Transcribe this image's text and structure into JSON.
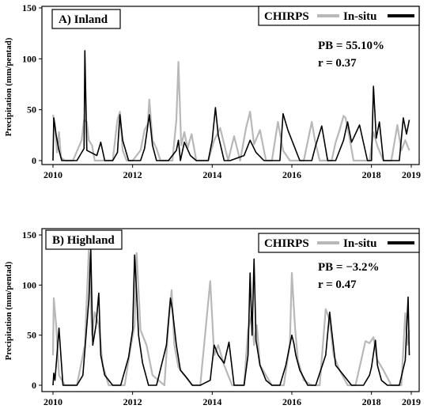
{
  "figure": {
    "ylabel": "Precipitation (mm/pentad)",
    "series_names": [
      "CHIRPS",
      "In-situ"
    ],
    "colors": {
      "chirps": "#b8b8b8",
      "insitu": "#000000"
    }
  },
  "chart_data": [
    {
      "type": "line",
      "title": "A) Inland",
      "ylabel": "Precipitation (mm/pentad)",
      "xlim": [
        2010,
        2019
      ],
      "ylim": [
        0,
        150
      ],
      "xticks": [
        2010,
        2012,
        2014,
        2016,
        2018,
        2019
      ],
      "yticks": [
        0,
        50,
        100,
        150
      ],
      "legend_position": "top-right",
      "stats": {
        "pb": "PB = 55.10%",
        "r": "r = 0.37"
      },
      "series": [
        {
          "name": "CHIRPS",
          "color": "#b8b8b8",
          "x": [
            2010.0,
            2010.05,
            2010.1,
            2010.15,
            2010.2,
            2010.3,
            2010.5,
            2010.72,
            2010.78,
            2010.85,
            2010.9,
            2010.98,
            2011.05,
            2011.2,
            2011.5,
            2011.62,
            2011.68,
            2011.75,
            2011.85,
            2012.0,
            2012.2,
            2012.3,
            2012.38,
            2012.42,
            2012.5,
            2012.6,
            2012.7,
            2012.85,
            2013.0,
            2013.1,
            2013.15,
            2013.22,
            2013.3,
            2013.38,
            2013.48,
            2013.6,
            2013.75,
            2013.9,
            2014.05,
            2014.2,
            2014.4,
            2014.55,
            2014.7,
            2014.85,
            2014.95,
            2015.05,
            2015.2,
            2015.35,
            2015.5,
            2015.65,
            2015.78,
            2015.95,
            2016.1,
            2016.3,
            2016.5,
            2016.58,
            2016.7,
            2016.85,
            2017.0,
            2017.1,
            2017.2,
            2017.3,
            2017.35,
            2017.45,
            2017.55,
            2017.7,
            2017.85,
            2017.95,
            2018.05,
            2018.15,
            2018.3,
            2018.5,
            2018.65,
            2018.75,
            2018.85,
            2018.95
          ],
          "values": [
            45,
            35,
            8,
            28,
            3,
            0,
            0,
            20,
            40,
            38,
            20,
            15,
            0,
            0,
            0,
            40,
            48,
            10,
            0,
            0,
            10,
            30,
            36,
            60,
            20,
            12,
            0,
            0,
            0,
            40,
            97,
            15,
            28,
            12,
            26,
            0,
            0,
            0,
            20,
            32,
            0,
            24,
            0,
            32,
            48,
            16,
            30,
            0,
            0,
            38,
            10,
            0,
            0,
            0,
            38,
            20,
            0,
            0,
            0,
            18,
            30,
            44,
            42,
            22,
            0,
            0,
            0,
            0,
            28,
            14,
            0,
            0,
            35,
            10,
            20,
            10
          ]
        },
        {
          "name": "In-situ",
          "color": "#000000",
          "x": [
            2010.0,
            2010.02,
            2010.08,
            2010.15,
            2010.22,
            2010.6,
            2010.78,
            2010.8,
            2010.85,
            2011.1,
            2011.2,
            2011.3,
            2011.5,
            2011.62,
            2011.68,
            2011.75,
            2011.9,
            2012.2,
            2012.3,
            2012.42,
            2012.5,
            2012.6,
            2012.9,
            2013.1,
            2013.15,
            2013.2,
            2013.3,
            2013.45,
            2013.6,
            2013.9,
            2014.0,
            2014.08,
            2014.15,
            2014.3,
            2014.45,
            2014.8,
            2014.95,
            2015.1,
            2015.3,
            2015.5,
            2015.7,
            2015.78,
            2015.9,
            2016.2,
            2016.5,
            2016.6,
            2016.75,
            2016.9,
            2017.1,
            2017.3,
            2017.4,
            2017.5,
            2017.7,
            2017.9,
            2018.0,
            2018.05,
            2018.12,
            2018.2,
            2018.3,
            2018.5,
            2018.7,
            2018.8,
            2018.88,
            2018.95
          ],
          "values": [
            0,
            42,
            25,
            10,
            0,
            0,
            12,
            108,
            10,
            5,
            18,
            0,
            0,
            8,
            45,
            20,
            0,
            0,
            12,
            45,
            15,
            0,
            0,
            10,
            20,
            0,
            18,
            5,
            0,
            0,
            20,
            52,
            25,
            0,
            0,
            5,
            20,
            8,
            0,
            0,
            0,
            46,
            30,
            0,
            0,
            15,
            34,
            0,
            0,
            20,
            38,
            18,
            35,
            0,
            0,
            73,
            22,
            38,
            0,
            0,
            0,
            42,
            26,
            40
          ]
        }
      ]
    },
    {
      "type": "line",
      "title": "B) Highland",
      "ylabel": "Precipitation (mm/pentad)",
      "xlim": [
        2010,
        2019
      ],
      "ylim": [
        0,
        150
      ],
      "xticks": [
        2010,
        2012,
        2014,
        2016,
        2018,
        2019
      ],
      "yticks": [
        0,
        50,
        100,
        150
      ],
      "legend_position": "top-right",
      "stats": {
        "pb": "PB = −3.2%",
        "r": "r = 0.47"
      },
      "series": [
        {
          "name": "CHIRPS",
          "color": "#b8b8b8",
          "x": [
            2010.0,
            2010.02,
            2010.08,
            2010.15,
            2010.3,
            2010.6,
            2010.8,
            2010.9,
            2010.98,
            2011.05,
            2011.15,
            2011.25,
            2011.4,
            2011.6,
            2011.8,
            2011.95,
            2012.05,
            2012.1,
            2012.2,
            2012.35,
            2012.5,
            2012.8,
            2012.9,
            2012.98,
            2013.05,
            2013.15,
            2013.3,
            2013.5,
            2013.7,
            2013.95,
            2014.05,
            2014.15,
            2014.3,
            2014.5,
            2014.8,
            2014.9,
            2015.0,
            2015.05,
            2015.12,
            2015.2,
            2015.35,
            2015.5,
            2015.8,
            2015.95,
            2016.0,
            2016.08,
            2016.15,
            2016.3,
            2016.5,
            2016.7,
            2016.85,
            2016.95,
            2017.05,
            2017.2,
            2017.4,
            2017.6,
            2017.85,
            2017.95,
            2018.05,
            2018.15,
            2018.3,
            2018.5,
            2018.75,
            2018.85,
            2018.9,
            2018.95
          ],
          "values": [
            30,
            87,
            60,
            10,
            0,
            0,
            40,
            135,
            50,
            73,
            60,
            20,
            0,
            0,
            0,
            38,
            60,
            132,
            55,
            40,
            10,
            0,
            62,
            95,
            40,
            18,
            10,
            0,
            0,
            104,
            30,
            40,
            20,
            0,
            0,
            55,
            72,
            40,
            60,
            20,
            10,
            0,
            0,
            42,
            112,
            58,
            25,
            5,
            0,
            0,
            76,
            65,
            30,
            15,
            0,
            0,
            44,
            42,
            48,
            25,
            15,
            0,
            0,
            72,
            40,
            55
          ]
        },
        {
          "name": "In-situ",
          "color": "#000000",
          "x": [
            2010.0,
            2010.02,
            2010.05,
            2010.1,
            2010.15,
            2010.25,
            2010.6,
            2010.75,
            2010.9,
            2010.95,
            2011.0,
            2011.08,
            2011.15,
            2011.2,
            2011.3,
            2011.5,
            2011.7,
            2011.9,
            2012.0,
            2012.05,
            2012.1,
            2012.15,
            2012.25,
            2012.4,
            2012.6,
            2012.85,
            2012.95,
            2013.0,
            2013.1,
            2013.2,
            2013.35,
            2013.5,
            2013.7,
            2013.95,
            2014.05,
            2014.15,
            2014.3,
            2014.42,
            2014.55,
            2014.8,
            2014.9,
            2014.95,
            2015.0,
            2015.05,
            2015.1,
            2015.2,
            2015.35,
            2015.5,
            2015.7,
            2015.85,
            2016.0,
            2016.05,
            2016.1,
            2016.2,
            2016.4,
            2016.6,
            2016.85,
            2016.95,
            2017.0,
            2017.1,
            2017.3,
            2017.5,
            2017.8,
            2017.95,
            2018.0,
            2018.1,
            2018.15,
            2018.25,
            2018.4,
            2018.7,
            2018.85,
            2018.92,
            2018.95
          ],
          "values": [
            0,
            12,
            5,
            30,
            57,
            0,
            0,
            10,
            85,
            135,
            40,
            60,
            92,
            30,
            10,
            0,
            0,
            28,
            55,
            130,
            92,
            50,
            22,
            0,
            0,
            40,
            87,
            75,
            40,
            15,
            8,
            0,
            0,
            5,
            40,
            30,
            22,
            43,
            0,
            0,
            30,
            112,
            50,
            126,
            45,
            20,
            5,
            0,
            0,
            20,
            50,
            42,
            30,
            15,
            0,
            0,
            30,
            73,
            55,
            20,
            10,
            0,
            0,
            10,
            18,
            45,
            20,
            5,
            0,
            0,
            25,
            88,
            30
          ]
        }
      ]
    }
  ]
}
